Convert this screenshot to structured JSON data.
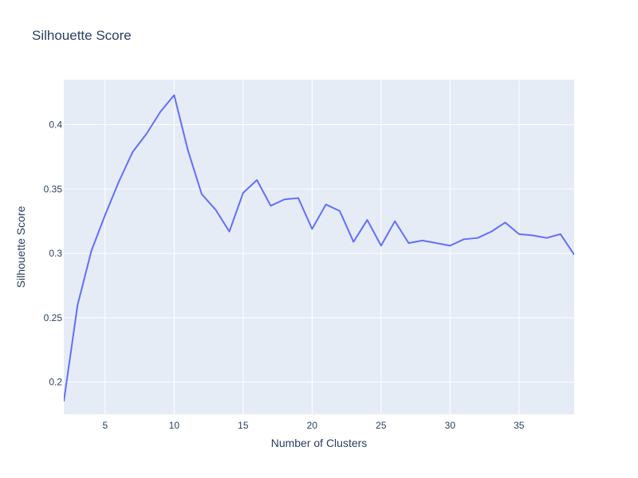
{
  "chart_data": {
    "type": "line",
    "title": "Silhouette Score",
    "xlabel": "Number of Clusters",
    "ylabel": "Silhouette Score",
    "xlim": [
      2,
      39
    ],
    "ylim": [
      0.175,
      0.435
    ],
    "x_ticks": [
      5,
      10,
      15,
      20,
      25,
      30,
      35
    ],
    "y_ticks": [
      0.2,
      0.25,
      0.3,
      0.35,
      0.4
    ],
    "x_tick_labels": [
      "5",
      "10",
      "15",
      "20",
      "25",
      "30",
      "35"
    ],
    "y_tick_labels": [
      "0.2",
      "0.25",
      "0.3",
      "0.35",
      "0.4"
    ],
    "grid": true,
    "colors": {
      "plot_bg": "#e5ecf6",
      "grid": "#ffffff",
      "line": "#636efa",
      "text": "#2a3f5f"
    },
    "series": [
      {
        "x": [
          2,
          3,
          4,
          5,
          6,
          7,
          8,
          9,
          10,
          11,
          12,
          13,
          14,
          15,
          16,
          17,
          18,
          19,
          20,
          21,
          22,
          23,
          24,
          25,
          26,
          27,
          28,
          29,
          30,
          31,
          32,
          33,
          34,
          35,
          36,
          37,
          38,
          39
        ],
        "values": [
          0.185,
          0.26,
          0.302,
          0.33,
          0.356,
          0.379,
          0.393,
          0.41,
          0.423,
          0.38,
          0.346,
          0.334,
          0.317,
          0.347,
          0.357,
          0.337,
          0.342,
          0.343,
          0.319,
          0.338,
          0.333,
          0.309,
          0.326,
          0.306,
          0.325,
          0.308,
          0.31,
          0.308,
          0.306,
          0.311,
          0.312,
          0.317,
          0.324,
          0.315,
          0.314,
          0.312,
          0.315,
          0.299
        ]
      }
    ]
  }
}
